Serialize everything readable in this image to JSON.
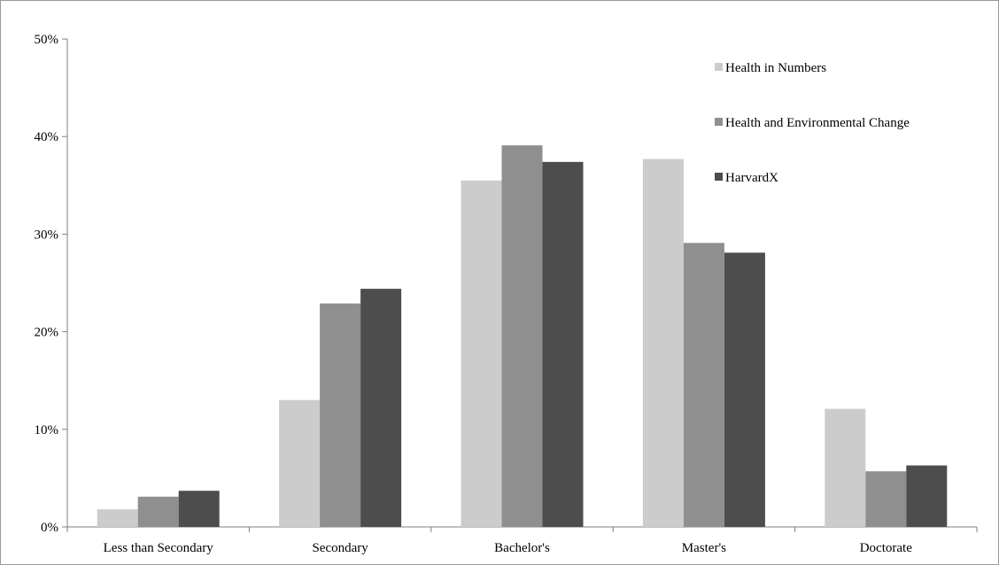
{
  "chart_data": {
    "type": "bar",
    "title": "",
    "xlabel": "",
    "ylabel": "",
    "categories": [
      "Less than Secondary",
      "Secondary",
      "Bachelor's",
      "Master's",
      "Doctorate"
    ],
    "series": [
      {
        "name": "Health in Numbers",
        "color": "#cccccc",
        "values": [
          1.8,
          13.0,
          35.5,
          37.7,
          12.1
        ]
      },
      {
        "name": "Health and Environmental Change",
        "color": "#8f8f8f",
        "values": [
          3.1,
          22.9,
          39.1,
          29.1,
          5.7
        ]
      },
      {
        "name": "HarvardX",
        "color": "#4d4d4d",
        "values": [
          3.7,
          24.4,
          37.4,
          28.1,
          6.3
        ]
      }
    ],
    "ylim": [
      0,
      50
    ],
    "yticks": [
      0,
      10,
      20,
      30,
      40,
      50
    ],
    "ytick_labels": [
      "0%",
      "10%",
      "20%",
      "30%",
      "40%",
      "50%"
    ],
    "grid": false,
    "legend_position": "top-right"
  }
}
